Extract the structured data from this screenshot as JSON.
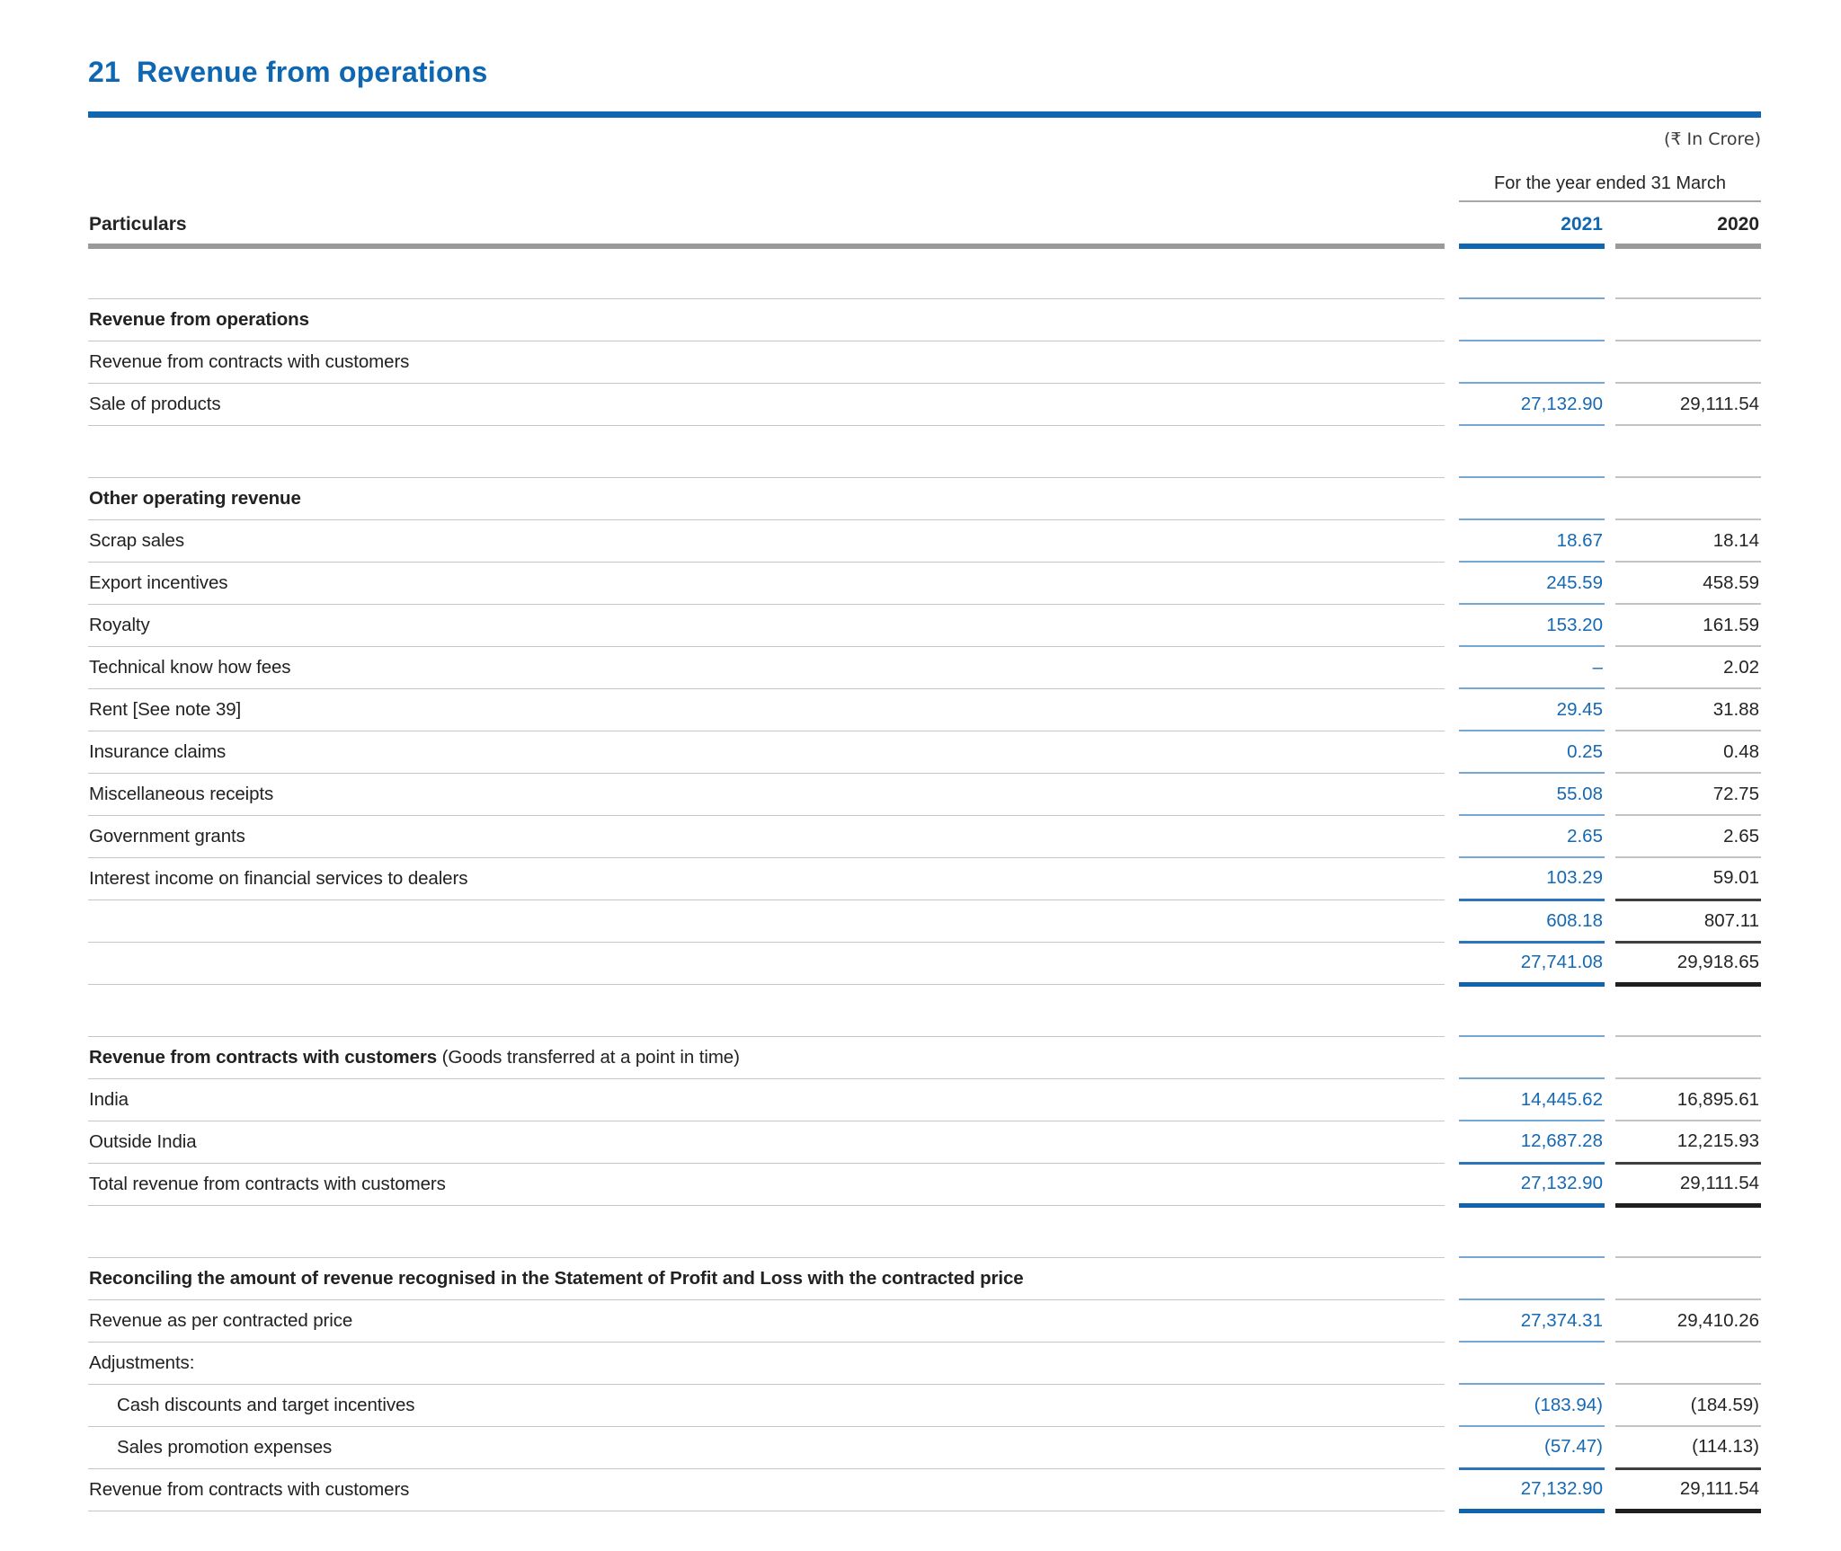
{
  "title": {
    "number": "21",
    "text": "Revenue from operations"
  },
  "currency_note": "(₹ In Crore)",
  "colors": {
    "accent_blue": "#0f67b1",
    "value_blue": "#1568b3",
    "rule_light_blue": "#74a7d6",
    "rule_medium_blue": "#2e74b8",
    "rule_thick_blue": "#1263ad",
    "rule_light_gray": "#c3c3c3",
    "rule_medium_dark": "#3f3f3f",
    "rule_thick_dark": "#1f1f1f",
    "header_bar_gray": "#9a9a9a",
    "text_dark": "#242424"
  },
  "table": {
    "period_header": "For the year ended 31 March",
    "columns": {
      "particulars": "Particulars",
      "y2021": "2021",
      "y2020": "2020"
    },
    "rows": [
      {
        "type": "spacer"
      },
      {
        "label": "Revenue from operations",
        "bold": true
      },
      {
        "label": "Revenue from contracts with customers"
      },
      {
        "label": "Sale of products",
        "v2021": "27,132.90",
        "v2020": "29,111.54"
      },
      {
        "type": "spacer"
      },
      {
        "label": "Other operating revenue",
        "bold": true
      },
      {
        "label": "Scrap sales",
        "v2021": "18.67",
        "v2020": "18.14"
      },
      {
        "label": "Export incentives",
        "v2021": "245.59",
        "v2020": "458.59"
      },
      {
        "label": "Royalty",
        "v2021": "153.20",
        "v2020": "161.59"
      },
      {
        "label": "Technical know how fees",
        "v2021": "–",
        "v2020": "2.02"
      },
      {
        "label": "Rent [See note 39]",
        "v2021": "29.45",
        "v2020": "31.88"
      },
      {
        "label": "Insurance claims",
        "v2021": "0.25",
        "v2020": "0.48"
      },
      {
        "label": "Miscellaneous receipts",
        "v2021": "55.08",
        "v2020": "72.75"
      },
      {
        "label": "Government grants",
        "v2021": "2.65",
        "v2020": "2.65"
      },
      {
        "label": "Interest income on financial services to dealers",
        "v2021": "103.29",
        "v2020": "59.01",
        "rule": "medium"
      },
      {
        "label": "",
        "v2021": "608.18",
        "v2020": "807.11",
        "rule": "medium"
      },
      {
        "label": "",
        "v2021": "27,741.08",
        "v2020": "29,918.65",
        "rule": "thick"
      },
      {
        "type": "spacer"
      },
      {
        "label": "Revenue from contracts with customers",
        "bold": true,
        "suffix": " (Goods transferred at a point in time)"
      },
      {
        "label": "India",
        "v2021": "14,445.62",
        "v2020": "16,895.61"
      },
      {
        "label": "Outside India",
        "v2021": "12,687.28",
        "v2020": "12,215.93",
        "rule": "medium"
      },
      {
        "label": "Total revenue from contracts with customers",
        "v2021": "27,132.90",
        "v2020": "29,111.54",
        "rule": "thick"
      },
      {
        "type": "spacer"
      },
      {
        "label": "Reconciling the amount of revenue recognised in the Statement of Profit and Loss with the contracted price",
        "bold": true
      },
      {
        "label": "Revenue as per contracted price",
        "v2021": "27,374.31",
        "v2020": "29,410.26"
      },
      {
        "label": "Adjustments:"
      },
      {
        "label": "Cash discounts and target incentives",
        "indent": true,
        "v2021": "(183.94)",
        "v2020": "(184.59)"
      },
      {
        "label": "Sales promotion expenses",
        "indent": true,
        "v2021": "(57.47)",
        "v2020": "(114.13)",
        "rule": "medium"
      },
      {
        "label": "Revenue from contracts with customers",
        "v2021": "27,132.90",
        "v2020": "29,111.54",
        "rule": "thick"
      }
    ]
  }
}
